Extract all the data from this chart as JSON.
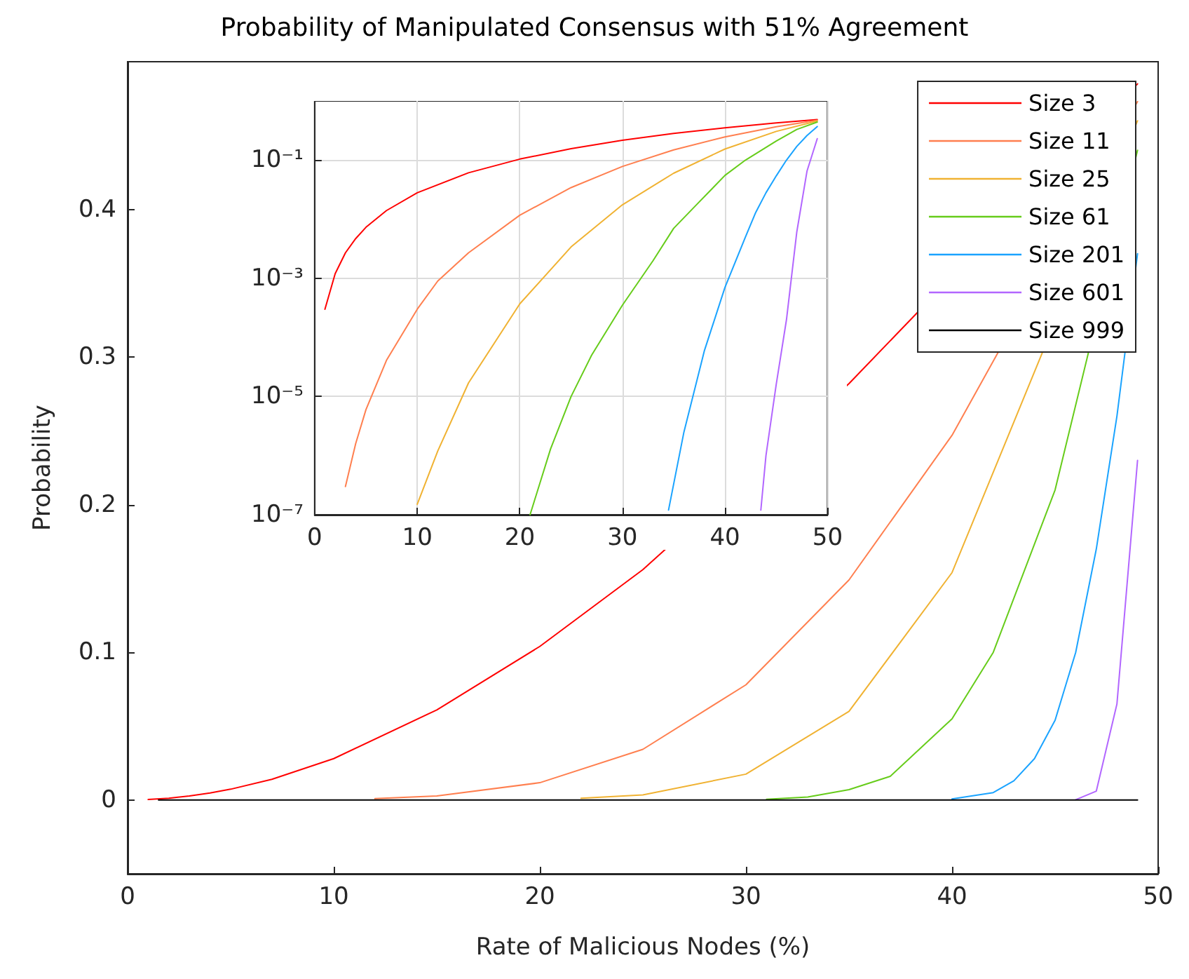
{
  "chart_data": [
    {
      "type": "line",
      "title": "Probability of Manipulated Consensus with 51% Agreement",
      "xlabel": "Rate of Malicious Nodes (%)",
      "ylabel": "Probability",
      "xlim": [
        0,
        50
      ],
      "xticks": [
        0,
        10,
        20,
        30,
        40,
        50
      ],
      "ylim": [
        -0.05,
        0.5
      ],
      "yticks": [
        0,
        0.1,
        0.2,
        0.3,
        0.4
      ],
      "legend": "top right",
      "grid": false,
      "series": [
        {
          "name": "Size 3",
          "color": "#ff0000",
          "x": [
            1,
            2,
            3,
            4,
            5,
            7,
            10,
            15,
            20,
            25,
            30,
            35,
            40,
            45,
            49
          ],
          "values": [
            0.0003,
            0.0012,
            0.0027,
            0.0047,
            0.0073,
            0.014,
            0.028,
            0.061,
            0.104,
            0.156,
            null,
            0.282,
            null,
            null,
            0.485
          ]
        },
        {
          "name": "Size 11",
          "color": "#ff7f4f",
          "x": [
            12,
            15,
            20,
            25,
            30,
            35,
            40,
            45,
            49
          ],
          "values": [
            0.0009,
            0.0027,
            0.0117,
            0.0343,
            0.078,
            0.149,
            0.247,
            null,
            0.473
          ]
        },
        {
          "name": "Size 25",
          "color": "#f0b232",
          "x": [
            22,
            25,
            30,
            35,
            40,
            45,
            49
          ],
          "values": [
            0.0012,
            0.0034,
            0.0175,
            0.06,
            0.154,
            null,
            0.46
          ]
        },
        {
          "name": "Size 61",
          "color": "#66cc1a",
          "x": [
            31,
            33,
            35,
            37,
            40,
            42,
            45,
            47,
            49
          ],
          "values": [
            0.0005,
            0.002,
            0.007,
            0.016,
            0.055,
            0.1,
            0.21,
            null,
            0.44
          ]
        },
        {
          "name": "Size 201",
          "color": "#1aa3ff",
          "x": [
            40,
            42,
            43,
            44,
            45,
            46,
            47,
            48,
            49
          ],
          "values": [
            0.0007,
            0.005,
            0.013,
            0.028,
            0.054,
            0.1,
            0.17,
            0.26,
            0.37
          ]
        },
        {
          "name": "Size 601",
          "color": "#b266ff",
          "x": [
            46,
            47,
            48,
            49
          ],
          "values": [
            0.0002,
            0.006,
            0.065,
            0.23
          ]
        },
        {
          "name": "Size 999",
          "color": "#000000",
          "x": [
            1.5,
            49
          ],
          "values": [
            0,
            0
          ]
        }
      ]
    },
    {
      "type": "line",
      "log": "y",
      "grid": true,
      "xlim": [
        0,
        50
      ],
      "xticks": [
        0,
        10,
        20,
        30,
        40,
        50
      ],
      "ylim": [
        1e-07,
        1
      ],
      "yticks": [
        {
          "value": 1e-07,
          "label": "10⁻⁷"
        },
        {
          "value": 1e-05,
          "label": "10⁻⁵"
        },
        {
          "value": 0.001,
          "label": "10⁻³"
        },
        {
          "value": 0.1,
          "label": "10⁻¹"
        }
      ],
      "series": [
        {
          "color": "#ff0000",
          "x": [
            1,
            2,
            3,
            4,
            5,
            7,
            10,
            15,
            20,
            25,
            30,
            35,
            40,
            45,
            49
          ],
          "values": [
            0.0003,
            0.0012,
            0.0027,
            0.0047,
            0.0073,
            0.014,
            0.028,
            0.061,
            0.104,
            0.156,
            0.216,
            0.282,
            0.352,
            0.425,
            0.485
          ]
        },
        {
          "color": "#ff7f4f",
          "x": [
            3,
            4,
            5,
            7,
            10,
            12,
            15,
            20,
            25,
            30,
            35,
            40,
            45,
            49
          ],
          "values": [
            3e-07,
            1.6e-06,
            6e-06,
            4.1e-05,
            0.0003,
            0.0009,
            0.0027,
            0.0117,
            0.0343,
            0.078,
            0.149,
            0.247,
            0.367,
            0.473
          ]
        },
        {
          "color": "#f0b232",
          "x": [
            10,
            12,
            15,
            20,
            25,
            30,
            35,
            40,
            45,
            49
          ],
          "values": [
            1.5e-07,
            1.2e-06,
            1.7e-05,
            0.00037,
            0.0034,
            0.0175,
            0.06,
            0.154,
            0.306,
            0.46
          ]
        },
        {
          "color": "#66cc1a",
          "x": [
            21,
            23,
            25,
            27,
            30,
            33,
            35,
            37,
            40,
            42,
            45,
            47,
            49
          ],
          "values": [
            1e-07,
            1.3e-06,
            1e-05,
            5e-05,
            0.00035,
            0.002,
            0.007,
            0.016,
            0.055,
            0.1,
            0.21,
            0.33,
            0.44
          ]
        },
        {
          "color": "#1aa3ff",
          "x": [
            34.5,
            36,
            38,
            40,
            42,
            43,
            44,
            45,
            46,
            47,
            48,
            49
          ],
          "values": [
            1.2e-07,
            2.5e-06,
            6e-05,
            0.0007,
            0.005,
            0.013,
            0.028,
            0.054,
            0.1,
            0.17,
            0.26,
            0.37
          ]
        },
        {
          "color": "#b266ff",
          "x": [
            43.5,
            44,
            45,
            46,
            47,
            48,
            49
          ],
          "values": [
            1.2e-07,
            1e-06,
            1.6e-05,
            0.0002,
            0.006,
            0.065,
            0.23
          ]
        }
      ]
    }
  ]
}
